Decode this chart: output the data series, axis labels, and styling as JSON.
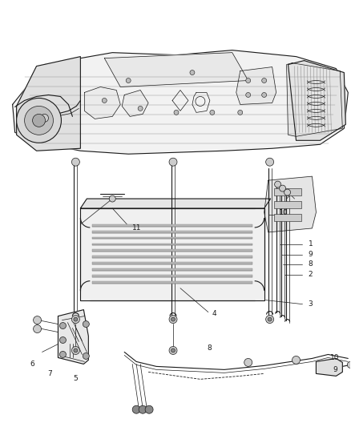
{
  "bg_color": "#ffffff",
  "line_color": "#1a1a1a",
  "fig_width": 4.38,
  "fig_height": 5.33,
  "dpi": 100,
  "label_fontsize": 6.5,
  "lw_thin": 0.5,
  "lw_med": 0.8,
  "lw_thick": 1.2,
  "gray_light": "#c8c8c8",
  "gray_med": "#888888",
  "gray_dark": "#444444",
  "fill_light": "#e8e8e8",
  "fill_white": "#f5f5f5"
}
